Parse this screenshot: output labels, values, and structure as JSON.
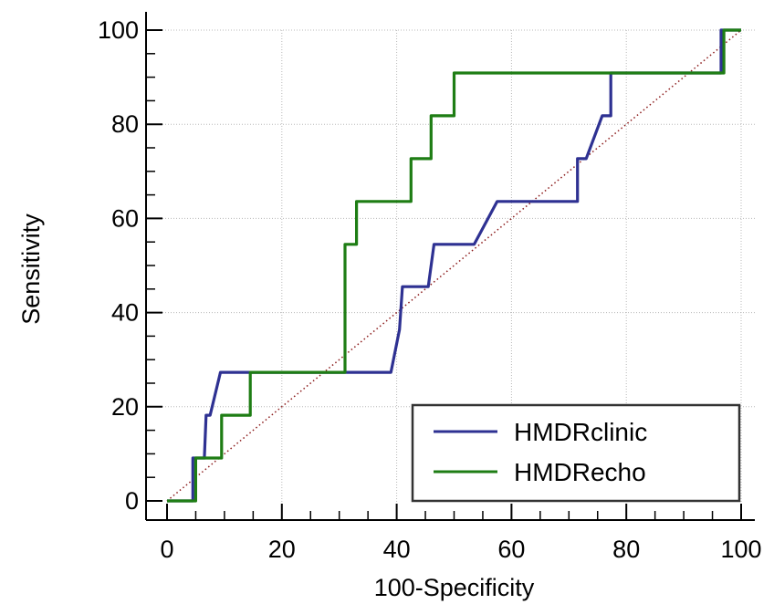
{
  "chart_data": {
    "type": "line",
    "title": "",
    "xlabel": "100-Specificity",
    "ylabel": "Sensitivity",
    "xlim": [
      0,
      100
    ],
    "ylim": [
      0,
      100
    ],
    "xticks": [
      0,
      20,
      40,
      60,
      80,
      100
    ],
    "yticks": [
      0,
      20,
      40,
      60,
      80,
      100
    ],
    "grid": true,
    "legend_position": "bottom-right",
    "reference_line": {
      "points": [
        [
          0,
          0
        ],
        [
          100,
          100
        ]
      ],
      "style": "dotted",
      "color": "#8b1a1a"
    },
    "series": [
      {
        "name": "HMDRclinic",
        "color": "#2e3192",
        "points": [
          [
            0,
            0
          ],
          [
            4.5,
            0
          ],
          [
            4.5,
            9.1
          ],
          [
            6.5,
            9.1
          ],
          [
            6.8,
            18.2
          ],
          [
            7.5,
            18.2
          ],
          [
            9.3,
            27.3
          ],
          [
            39,
            27.3
          ],
          [
            40.5,
            36.4
          ],
          [
            41,
            45.5
          ],
          [
            45.5,
            45.5
          ],
          [
            46.5,
            54.5
          ],
          [
            53.5,
            54.5
          ],
          [
            57.5,
            63.6
          ],
          [
            71.5,
            63.6
          ],
          [
            71.5,
            72.7
          ],
          [
            73,
            72.7
          ],
          [
            75.8,
            81.8
          ],
          [
            77.3,
            81.8
          ],
          [
            77.3,
            90.9
          ],
          [
            96.5,
            90.9
          ],
          [
            96.5,
            100
          ],
          [
            100,
            100
          ]
        ]
      },
      {
        "name": "HMDRecho",
        "color": "#1e7d14",
        "points": [
          [
            0,
            0
          ],
          [
            5,
            0
          ],
          [
            5,
            9.1
          ],
          [
            9.5,
            9.1
          ],
          [
            9.5,
            18.2
          ],
          [
            14.5,
            18.2
          ],
          [
            14.5,
            27.3
          ],
          [
            31,
            27.3
          ],
          [
            31,
            54.5
          ],
          [
            33,
            54.5
          ],
          [
            33,
            63.6
          ],
          [
            42.5,
            63.6
          ],
          [
            42.5,
            72.7
          ],
          [
            46,
            72.7
          ],
          [
            46,
            81.8
          ],
          [
            50,
            81.8
          ],
          [
            50,
            90.9
          ],
          [
            97,
            90.9
          ],
          [
            97,
            100
          ],
          [
            100,
            100
          ]
        ]
      }
    ]
  }
}
